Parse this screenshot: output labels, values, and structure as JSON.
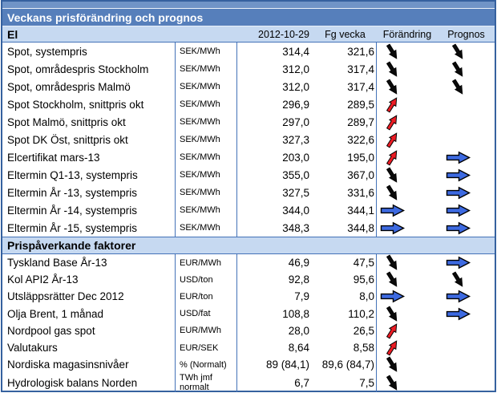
{
  "title": "Veckans prisförändring och prognos",
  "columns": {
    "current_date": "2012-10-29",
    "previous_week": "Fg vecka",
    "change": "Förändring",
    "forecast": "Prognos"
  },
  "colors": {
    "top_strip": "#7094C7",
    "title_bar": "#567FBB",
    "section_bg": "#C6D9F1",
    "table_border": "#35619F",
    "grid_line": "#4472B8",
    "arrow_down_fill": "#0B0B0B",
    "arrow_up_fill": "#ED1C24",
    "arrow_right_fill": "#3D6AE1",
    "arrow_stroke": "#000000"
  },
  "arrow_meanings": {
    "down": "price-decrease-arrow",
    "up": "price-increase-arrow",
    "right": "unchanged-sideways-arrow"
  },
  "sections": [
    {
      "header": "El",
      "rows": [
        {
          "label": "Spot, systempris",
          "unit": "SEK/MWh",
          "current": "314,4",
          "previous": "321,6",
          "change": "down",
          "forecast": "down"
        },
        {
          "label": "Spot, områdespris Stockholm",
          "unit": "SEK/MWh",
          "current": "312,0",
          "previous": "317,4",
          "change": "down",
          "forecast": "down"
        },
        {
          "label": "Spot, områdespris Malmö",
          "unit": "SEK/MWh",
          "current": "312,0",
          "previous": "317,4",
          "change": "down",
          "forecast": "down"
        },
        {
          "label": "Spot Stockholm, snittpris okt",
          "unit": "SEK/MWh",
          "current": "296,9",
          "previous": "289,5",
          "change": "up",
          "forecast": ""
        },
        {
          "label": "Spot Malmö, snittpris okt",
          "unit": "SEK/MWh",
          "current": "297,0",
          "previous": "289,7",
          "change": "up",
          "forecast": ""
        },
        {
          "label": "Spot DK Öst, snittpris okt",
          "unit": "SEK/MWh",
          "current": "327,3",
          "previous": "322,6",
          "change": "up",
          "forecast": ""
        },
        {
          "label": "Elcertifikat mars-13",
          "unit": "SEK/MWh",
          "current": "203,0",
          "previous": "195,0",
          "change": "up",
          "forecast": "right"
        },
        {
          "label": "Eltermin Q1-13, systempris",
          "unit": "SEK/MWh",
          "current": "355,0",
          "previous": "367,0",
          "change": "down",
          "forecast": "right"
        },
        {
          "label": "Eltermin År -13, systempris",
          "unit": "SEK/MWh",
          "current": "327,5",
          "previous": "331,6",
          "change": "down",
          "forecast": "right"
        },
        {
          "label": "Eltermin År -14, systempris",
          "unit": "SEK/MWh",
          "current": "344,0",
          "previous": "344,1",
          "change": "right",
          "forecast": "right"
        },
        {
          "label": "Eltermin År -15, systempris",
          "unit": "SEK/MWh",
          "current": "348,3",
          "previous": "344,8",
          "change": "right",
          "forecast": "right"
        }
      ]
    },
    {
      "header": "Prispåverkande faktorer",
      "rows": [
        {
          "label": "Tyskland Base År-13",
          "unit": "EUR/MWh",
          "current": "46,9",
          "previous": "47,5",
          "change": "down",
          "forecast": "right"
        },
        {
          "label": "Kol API2 År-13",
          "unit": "USD/ton",
          "current": "92,8",
          "previous": "95,6",
          "change": "down",
          "forecast": "down"
        },
        {
          "label": "Utsläppsrätter Dec 2012",
          "unit": "EUR/ton",
          "current": "7,9",
          "previous": "8,0",
          "change": "right",
          "forecast": "right"
        },
        {
          "label": "Olja Brent, 1 månad",
          "unit": "USD/fat",
          "current": "108,8",
          "previous": "110,2",
          "change": "down",
          "forecast": "right"
        },
        {
          "label": "Nordpool gas spot",
          "unit": "EUR/MWh",
          "current": "28,0",
          "previous": "26,5",
          "change": "up",
          "forecast": ""
        },
        {
          "label": "Valutakurs",
          "unit": "EUR/SEK",
          "current": "8,64",
          "previous": "8,58",
          "change": "up",
          "forecast": ""
        },
        {
          "label": "Nordiska magasinsnivåer",
          "unit": "% (Normalt)",
          "current": "89 (84,1)",
          "previous": "89,6 (84,7)",
          "change": "down",
          "forecast": ""
        },
        {
          "label": "Hydrologisk balans Norden",
          "unit": "TWh jmf normalt",
          "current": "6,7",
          "previous": "7,5",
          "change": "down",
          "forecast": ""
        }
      ]
    }
  ]
}
